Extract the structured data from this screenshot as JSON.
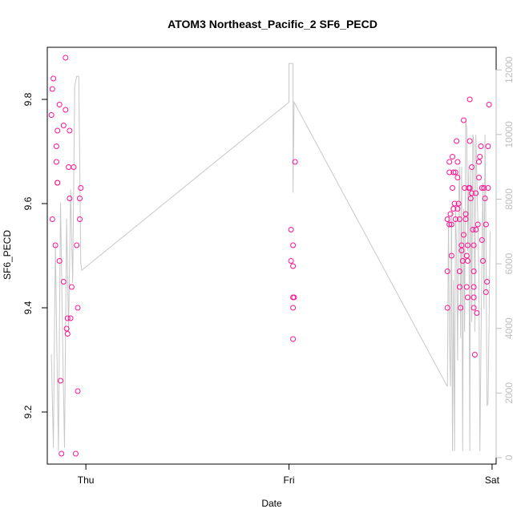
{
  "chart_data": {
    "type": "scatter",
    "title": "ATOM3 Northeast_Pacific_2 SF6_PECD",
    "xlabel": "Date",
    "ylabel": "SF6_PECD",
    "x_ticks": [
      "Thu",
      "Fri",
      "Sat"
    ],
    "x_range": [
      -0.19,
      2.02
    ],
    "ylim": [
      9.1,
      9.9
    ],
    "y_ticks": [
      "9.2",
      "9.4",
      "9.6",
      "9.8"
    ],
    "y2lim": [
      -200,
      12700
    ],
    "y2_ticks": [
      "0",
      "2000",
      "4000",
      "6000",
      "8000",
      "10000",
      "12000"
    ],
    "point_color": "#ff1493",
    "line_color": "#c8c8c8",
    "series": [
      {
        "values": [
          [
            -0.17,
            9.77
          ],
          [
            -0.165,
            9.82
          ],
          [
            -0.16,
            9.84
          ],
          [
            -0.165,
            9.57
          ],
          [
            -0.15,
            9.52
          ],
          [
            -0.145,
            9.71
          ],
          [
            -0.145,
            9.68
          ],
          [
            -0.14,
            9.64
          ],
          [
            -0.14,
            9.64
          ],
          [
            -0.14,
            9.74
          ],
          [
            -0.13,
            9.79
          ],
          [
            -0.13,
            9.49
          ],
          [
            -0.125,
            9.26
          ],
          [
            -0.12,
            9.12
          ],
          [
            -0.11,
            9.75
          ],
          [
            -0.11,
            9.45
          ],
          [
            -0.1,
            9.88
          ],
          [
            -0.1,
            9.78
          ],
          [
            -0.095,
            9.36
          ],
          [
            -0.09,
            9.35
          ],
          [
            -0.09,
            9.38
          ],
          [
            -0.085,
            9.67
          ],
          [
            -0.08,
            9.74
          ],
          [
            -0.08,
            9.61
          ],
          [
            -0.075,
            9.38
          ],
          [
            -0.07,
            9.44
          ],
          [
            -0.06,
            9.67
          ],
          [
            -0.05,
            9.12
          ],
          [
            -0.045,
            9.52
          ],
          [
            -0.04,
            9.4
          ],
          [
            -0.04,
            9.24
          ],
          [
            -0.03,
            9.57
          ],
          [
            -0.03,
            9.61
          ],
          [
            -0.025,
            9.63
          ],
          [
            1.01,
            9.55
          ],
          [
            1.01,
            9.49
          ],
          [
            1.02,
            9.48
          ],
          [
            1.02,
            9.42
          ],
          [
            1.02,
            9.4
          ],
          [
            1.025,
            9.42
          ],
          [
            1.02,
            9.52
          ],
          [
            1.02,
            9.34
          ],
          [
            1.03,
            9.68
          ],
          [
            1.78,
            9.4
          ],
          [
            1.78,
            9.47
          ],
          [
            1.78,
            9.57
          ],
          [
            1.79,
            9.68
          ],
          [
            1.79,
            9.66
          ],
          [
            1.795,
            9.58
          ],
          [
            1.79,
            9.56
          ],
          [
            1.8,
            9.5
          ],
          [
            1.8,
            9.56
          ],
          [
            1.805,
            9.63
          ],
          [
            1.805,
            9.69
          ],
          [
            1.81,
            9.66
          ],
          [
            1.81,
            9.59
          ],
          [
            1.815,
            9.6
          ],
          [
            1.82,
            9.57
          ],
          [
            1.82,
            9.66
          ],
          [
            1.825,
            9.72
          ],
          [
            1.83,
            9.59
          ],
          [
            1.83,
            9.65
          ],
          [
            1.83,
            9.68
          ],
          [
            1.835,
            9.6
          ],
          [
            1.84,
            9.57
          ],
          [
            1.84,
            9.44
          ],
          [
            1.84,
            9.47
          ],
          [
            1.845,
            9.4
          ],
          [
            1.85,
            9.51
          ],
          [
            1.85,
            9.52
          ],
          [
            1.855,
            9.49
          ],
          [
            1.86,
            9.76
          ],
          [
            1.86,
            9.54
          ],
          [
            1.865,
            9.63
          ],
          [
            1.87,
            9.58
          ],
          [
            1.87,
            9.57
          ],
          [
            1.875,
            9.5
          ],
          [
            1.875,
            9.44
          ],
          [
            1.88,
            9.42
          ],
          [
            1.88,
            9.49
          ],
          [
            1.88,
            9.52
          ],
          [
            1.885,
            9.63
          ],
          [
            1.89,
            9.63
          ],
          [
            1.89,
            9.8
          ],
          [
            1.89,
            9.72
          ],
          [
            1.895,
            9.61
          ],
          [
            1.9,
            9.62
          ],
          [
            1.9,
            9.67
          ],
          [
            1.905,
            9.55
          ],
          [
            1.91,
            9.52
          ],
          [
            1.91,
            9.47
          ],
          [
            1.91,
            9.42
          ],
          [
            1.91,
            9.44
          ],
          [
            1.91,
            9.4
          ],
          [
            1.915,
            9.31
          ],
          [
            1.92,
            9.55
          ],
          [
            1.92,
            9.62
          ],
          [
            1.925,
            9.39
          ],
          [
            1.93,
            9.56
          ],
          [
            1.935,
            9.65
          ],
          [
            1.935,
            9.68
          ],
          [
            1.94,
            9.69
          ],
          [
            1.945,
            9.71
          ],
          [
            1.95,
            9.63
          ],
          [
            1.95,
            9.53
          ],
          [
            1.955,
            9.49
          ],
          [
            1.96,
            9.63
          ],
          [
            1.965,
            9.61
          ],
          [
            1.97,
            9.56
          ],
          [
            1.97,
            9.43
          ],
          [
            1.975,
            9.45
          ],
          [
            1.98,
            9.63
          ],
          [
            1.98,
            9.71
          ],
          [
            1.985,
            9.79
          ]
        ]
      },
      {
        "axis": "right",
        "values": [
          [
            -0.17,
            3200
          ],
          [
            -0.16,
            300
          ],
          [
            -0.15,
            6600
          ],
          [
            -0.14,
            2100
          ],
          [
            -0.135,
            200
          ],
          [
            -0.125,
            7900
          ],
          [
            -0.115,
            3800
          ],
          [
            -0.105,
            300
          ],
          [
            -0.095,
            7400
          ],
          [
            -0.085,
            3900
          ],
          [
            -0.075,
            8300
          ],
          [
            -0.065,
            5400
          ],
          [
            -0.055,
            11500
          ],
          [
            -0.045,
            11800
          ],
          [
            -0.035,
            11800
          ],
          [
            -0.025,
            6000
          ],
          [
            -0.02,
            5800
          ],
          [
            1.0,
            11000
          ],
          [
            1.0,
            12200
          ],
          [
            1.02,
            12200
          ],
          [
            1.02,
            8200
          ],
          [
            1.025,
            11000
          ],
          [
            1.78,
            2200
          ],
          [
            1.785,
            7500
          ],
          [
            1.79,
            3700
          ],
          [
            1.795,
            2200
          ],
          [
            1.8,
            7800
          ],
          [
            1.805,
            200
          ],
          [
            1.81,
            5500
          ],
          [
            1.815,
            200
          ],
          [
            1.82,
            7700
          ],
          [
            1.825,
            6500
          ],
          [
            1.83,
            3000
          ],
          [
            1.835,
            7700
          ],
          [
            1.84,
            9000
          ],
          [
            1.845,
            3700
          ],
          [
            1.85,
            9000
          ],
          [
            1.855,
            200
          ],
          [
            1.86,
            7700
          ],
          [
            1.865,
            3900
          ],
          [
            1.87,
            10500
          ],
          [
            1.875,
            10200
          ],
          [
            1.88,
            6400
          ],
          [
            1.885,
            9000
          ],
          [
            1.89,
            200
          ],
          [
            1.895,
            8900
          ],
          [
            1.9,
            4200
          ],
          [
            1.905,
            10000
          ],
          [
            1.91,
            9800
          ],
          [
            1.915,
            3900
          ],
          [
            1.92,
            10000
          ],
          [
            1.93,
            7300
          ],
          [
            1.935,
            5500
          ],
          [
            1.94,
            200
          ],
          [
            1.95,
            6400
          ],
          [
            1.955,
            8500
          ],
          [
            1.96,
            4600
          ],
          [
            1.965,
            10000
          ],
          [
            1.97,
            6800
          ],
          [
            1.975,
            1600
          ],
          [
            1.98,
            1700
          ],
          [
            1.985,
            4100
          ],
          [
            1.99,
            7000
          ]
        ]
      }
    ]
  }
}
